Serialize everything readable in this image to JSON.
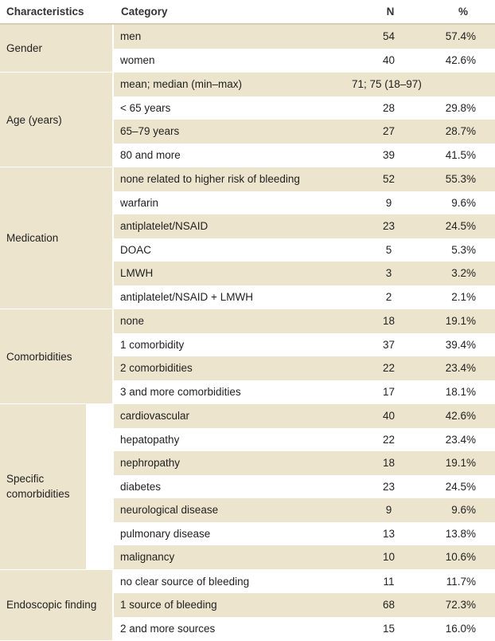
{
  "headers": {
    "characteristics": "Characteristics",
    "category": "Category",
    "n": "N",
    "percent": "%"
  },
  "groups": [
    {
      "label": "Gender",
      "rows": [
        {
          "category": "men",
          "n": "54",
          "pct": "57.4%"
        },
        {
          "category": "women",
          "n": "40",
          "pct": "42.6%"
        }
      ]
    },
    {
      "label": "Age (years)",
      "rows": [
        {
          "category": "mean; median (min–max)",
          "merged": "71; 75 (18–97)"
        },
        {
          "category": "< 65 years",
          "n": "28",
          "pct": "29.8%"
        },
        {
          "category": "65–79 years",
          "n": "27",
          "pct": "28.7%"
        },
        {
          "category": "80 and more",
          "n": "39",
          "pct": "41.5%"
        }
      ]
    },
    {
      "label": "Medication",
      "rows": [
        {
          "category": "none related to higher risk of bleeding",
          "n": "52",
          "pct": "55.3%"
        },
        {
          "category": "warfarin",
          "n": "9",
          "pct": "9.6%"
        },
        {
          "category": "antiplatelet/NSAID",
          "n": "23",
          "pct": "24.5%"
        },
        {
          "category": "DOAC",
          "n": "5",
          "pct": "5.3%"
        },
        {
          "category": "LMWH",
          "n": "3",
          "pct": "3.2%"
        },
        {
          "category": "antiplatelet/NSAID + LMWH",
          "n": "2",
          "pct": "2.1%"
        }
      ]
    },
    {
      "label": "Comorbidities",
      "rows": [
        {
          "category": "none",
          "n": "18",
          "pct": "19.1%"
        },
        {
          "category": "1 comorbidity",
          "n": "37",
          "pct": "39.4%"
        },
        {
          "category": "2 comorbidities",
          "n": "22",
          "pct": "23.4%"
        },
        {
          "category": "3 and more comorbidities",
          "n": "17",
          "pct": "18.1%"
        }
      ]
    },
    {
      "label": "Specific comorbidities",
      "rows": [
        {
          "category": "cardiovascular",
          "n": "40",
          "pct": "42.6%"
        },
        {
          "category": "hepatopathy",
          "n": "22",
          "pct": "23.4%"
        },
        {
          "category": "nephropathy",
          "n": "18",
          "pct": "19.1%"
        },
        {
          "category": "diabetes",
          "n": "23",
          "pct": "24.5%"
        },
        {
          "category": "neurological disease",
          "n": "9",
          "pct": "9.6%"
        },
        {
          "category": "pulmonary disease",
          "n": "13",
          "pct": "13.8%"
        },
        {
          "category": "malignancy",
          "n": "10",
          "pct": "10.6%"
        }
      ]
    },
    {
      "label": "Endoscopic finding",
      "rows": [
        {
          "category": "no clear source of bleeding",
          "n": "11",
          "pct": "11.7%"
        },
        {
          "category": "1 source of bleeding",
          "n": "68",
          "pct": "72.3%"
        },
        {
          "category": "2 and more sources",
          "n": "15",
          "pct": "16.0%"
        }
      ]
    }
  ]
}
